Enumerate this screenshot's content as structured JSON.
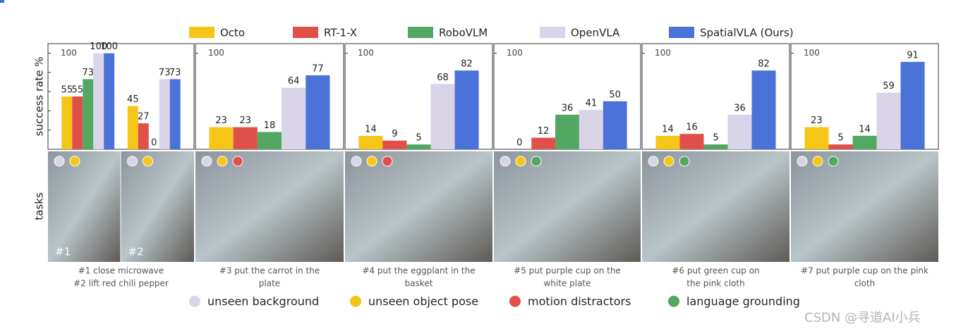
{
  "chart_data": {
    "type": "bar",
    "ylabel": "success rate %",
    "row_label": "tasks",
    "ylim": [
      0,
      110
    ],
    "yticks": [
      100
    ],
    "series": [
      {
        "name": "Octo",
        "color": "#f5c518",
        "values": [
          55,
          45,
          23,
          14,
          0,
          14,
          23
        ]
      },
      {
        "name": "RT-1-X",
        "color": "#e0504a",
        "values": [
          55,
          27,
          23,
          9,
          12,
          16,
          5
        ]
      },
      {
        "name": "RoboVLM",
        "color": "#52a862",
        "values": [
          73,
          0,
          18,
          5,
          36,
          5,
          14
        ]
      },
      {
        "name": "OpenVLA",
        "color": "#d9d4e8",
        "values": [
          100,
          73,
          64,
          68,
          41,
          36,
          59
        ]
      },
      {
        "name": "SpatialVLA (Ours)",
        "color": "#4a72d8",
        "values": [
          100,
          73,
          77,
          82,
          50,
          82,
          91
        ]
      }
    ],
    "panels": [
      {
        "caption": [
          "#1 close microwave",
          "#2 lift red chili pepper"
        ],
        "images": [
          {
            "label": "#1",
            "tags": [
              0,
              1
            ]
          },
          {
            "label": "#2",
            "tags": [
              0,
              1
            ]
          }
        ]
      },
      {
        "caption": [
          "#3 put the carrot in the",
          "plate"
        ],
        "images": [
          {
            "tags": [
              0,
              1,
              2
            ]
          }
        ]
      },
      {
        "caption": [
          "#4 put the eggplant in the",
          "basket"
        ],
        "images": [
          {
            "tags": [
              0,
              1,
              2
            ]
          }
        ]
      },
      {
        "caption": [
          "#5 put purple cup on the",
          "white plate"
        ],
        "images": [
          {
            "tags": [
              0,
              1,
              3
            ]
          }
        ]
      },
      {
        "caption": [
          "#6 put green cup on",
          "the pink cloth"
        ],
        "images": [
          {
            "tags": [
              0,
              1,
              3
            ]
          }
        ]
      },
      {
        "caption": [
          "#7 put purple cup on the pink",
          "cloth"
        ],
        "images": [
          {
            "tags": [
              0,
              1,
              3
            ]
          }
        ]
      }
    ],
    "conditions": [
      {
        "name": "unseen background",
        "color": "#d9d4e8"
      },
      {
        "name": "unseen object pose",
        "color": "#f5c518"
      },
      {
        "name": "motion distractors",
        "color": "#e0504a"
      },
      {
        "name": "language grounding",
        "color": "#52a862"
      }
    ],
    "watermark": "CSDN @寻道AI小兵"
  }
}
